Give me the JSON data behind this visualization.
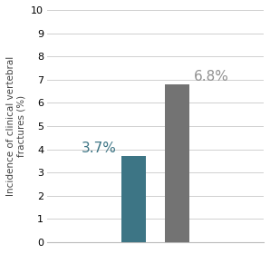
{
  "values": [
    3.7,
    6.8
  ],
  "bar_colors": [
    "#3d7585",
    "#737373"
  ],
  "bar_width": 0.08,
  "labels": [
    "3.7%",
    "6.8%"
  ],
  "label_color_1": "#3d7585",
  "label_color_2": "#909090",
  "ylabel": "Incidence of clinical vertebral\nfractures (%)",
  "ylim": [
    0,
    10
  ],
  "yticks": [
    0,
    1,
    2,
    3,
    4,
    5,
    6,
    7,
    8,
    9,
    10
  ],
  "grid_color": "#d0d0d0",
  "background_color": "#ffffff",
  "label_fontsize": 11,
  "ylabel_fontsize": 7.5,
  "tick_fontsize": 8,
  "bar_positions": [
    0.58,
    0.72
  ],
  "xlim": [
    0.3,
    1.0
  ]
}
